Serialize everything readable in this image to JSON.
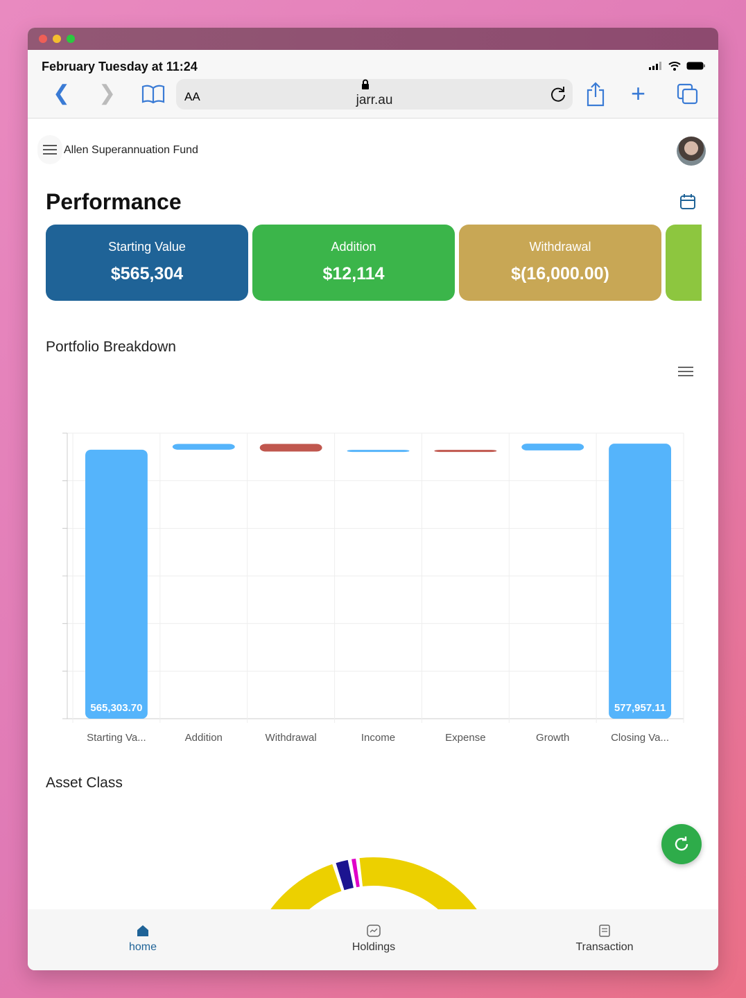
{
  "browser": {
    "status_time": "February Tuesday at 11:24",
    "text_size_label": "AA",
    "url": "jarr.au"
  },
  "app": {
    "title": "Allen Superannuation Fund",
    "page_title": "Performance"
  },
  "cards": [
    {
      "label": "Starting Value",
      "value": "$565,304",
      "color": "#1f6397"
    },
    {
      "label": "Addition",
      "value": "$12,114",
      "color": "#3bb54a"
    },
    {
      "label": "Withdrawal",
      "value": "$(16,000.00)",
      "color": "#c8a755"
    },
    {
      "label": "",
      "value": "",
      "color": "#8dc63f"
    }
  ],
  "portfolio": {
    "title": "Portfolio Breakdown"
  },
  "chart_data": {
    "type": "bar",
    "subtype": "waterfall",
    "categories": [
      "Starting Va...",
      "Addition",
      "Withdrawal",
      "Income",
      "Expense",
      "Growth",
      "Closing Va..."
    ],
    "values": [
      565303.7,
      12114,
      -16000,
      3500,
      -1200,
      14239.41,
      577957.11
    ],
    "totals": [
      true,
      false,
      false,
      false,
      false,
      false,
      true
    ],
    "data_labels": [
      "565,303.70",
      "",
      "",
      "",
      "",
      "",
      "577,957.11"
    ],
    "ylim": [
      0,
      600000
    ],
    "grid": true,
    "colors": {
      "increase": "#55b4fb",
      "decrease": "#c0574e",
      "total": "#55b4fb"
    }
  },
  "asset_class": {
    "title": "Asset Class",
    "chart_data": {
      "type": "pie",
      "subtype": "half-donut",
      "values": [
        40,
        4,
        2,
        54
      ],
      "colors": [
        "#ecd000",
        "#1c1490",
        "#e000c8",
        "#ecd000"
      ]
    }
  },
  "tabs": [
    {
      "label": "home",
      "active": true
    },
    {
      "label": "Holdings"
    },
    {
      "label": "Transaction"
    }
  ]
}
